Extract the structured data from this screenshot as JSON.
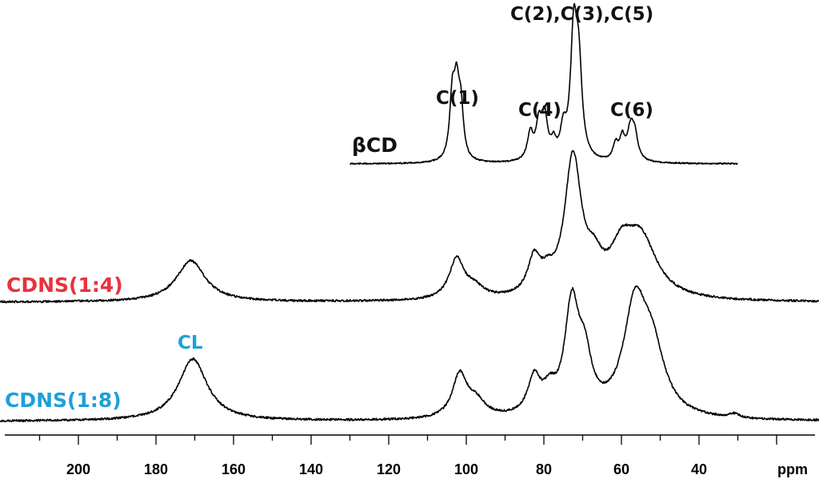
{
  "chart_data": {
    "type": "line",
    "title": "",
    "xlabel": "ppm",
    "ylabel": "",
    "x_reversed": true,
    "xlim": [
      221,
      6
    ],
    "x_ticks": [
      "200",
      "180",
      "160",
      "140",
      "120",
      "100",
      "80",
      "60",
      "40"
    ],
    "grid": false,
    "colors": {
      "trace": "#000000",
      "cdns14_label": "#e8323c",
      "cdns18_label": "#1ea0d8",
      "cl_label": "#1ea0d8",
      "bcd_label": "#111111"
    },
    "series": [
      {
        "name": "βCD",
        "x_range": [
          130,
          30
        ],
        "peaks": [
          {
            "ppm": 103.6,
            "height": 0.5,
            "width": 0.8
          },
          {
            "ppm": 102.5,
            "height": 0.52,
            "width": 0.8
          },
          {
            "ppm": 101.4,
            "height": 0.4,
            "width": 0.8
          },
          {
            "ppm": 83.5,
            "height": 0.22,
            "width": 0.9
          },
          {
            "ppm": 81.3,
            "height": 0.28,
            "width": 0.9
          },
          {
            "ppm": 79.8,
            "height": 0.34,
            "width": 0.9
          },
          {
            "ppm": 77.5,
            "height": 0.12,
            "width": 0.8
          },
          {
            "ppm": 75.0,
            "height": 0.22,
            "width": 0.9
          },
          {
            "ppm": 72.3,
            "height": 1.0,
            "width": 1.0
          },
          {
            "ppm": 71.0,
            "height": 0.7,
            "width": 1.0
          },
          {
            "ppm": 61.5,
            "height": 0.13,
            "width": 0.8
          },
          {
            "ppm": 59.8,
            "height": 0.17,
            "width": 0.8
          },
          {
            "ppm": 57.6,
            "height": 0.27,
            "width": 1.1
          },
          {
            "ppm": 56.5,
            "height": 0.16,
            "width": 0.9
          }
        ]
      },
      {
        "name": "CDNS(1:4)",
        "x_range": [
          221,
          6
        ],
        "peaks": [
          {
            "ppm": 171.0,
            "height": 0.3,
            "width": 4.5
          },
          {
            "ppm": 102.5,
            "height": 0.29,
            "width": 2.3
          },
          {
            "ppm": 98.0,
            "height": 0.08,
            "width": 3.0
          },
          {
            "ppm": 82.5,
            "height": 0.26,
            "width": 2.0
          },
          {
            "ppm": 79.0,
            "height": 0.1,
            "width": 2.0
          },
          {
            "ppm": 72.5,
            "height": 1.0,
            "width": 2.6
          },
          {
            "ppm": 67.0,
            "height": 0.18,
            "width": 2.5
          },
          {
            "ppm": 60.0,
            "height": 0.27,
            "width": 3.5
          },
          {
            "ppm": 55.0,
            "height": 0.42,
            "width": 5.0
          }
        ]
      },
      {
        "name": "CDNS(1:8)",
        "x_range": [
          221,
          6
        ],
        "peaks": [
          {
            "ppm": 170.5,
            "height": 0.48,
            "width": 4.5
          },
          {
            "ppm": 101.7,
            "height": 0.33,
            "width": 2.3
          },
          {
            "ppm": 97.5,
            "height": 0.12,
            "width": 3.0
          },
          {
            "ppm": 82.5,
            "height": 0.28,
            "width": 2.0
          },
          {
            "ppm": 78.5,
            "height": 0.15,
            "width": 2.0
          },
          {
            "ppm": 72.8,
            "height": 0.82,
            "width": 2.2
          },
          {
            "ppm": 69.5,
            "height": 0.38,
            "width": 2.2
          },
          {
            "ppm": 56.5,
            "height": 0.82,
            "width": 3.6
          },
          {
            "ppm": 52.0,
            "height": 0.45,
            "width": 3.8
          },
          {
            "ppm": 31.0,
            "height": 0.03,
            "width": 1.5
          }
        ]
      }
    ],
    "annotations": [
      "C(2),C(3),C(5)",
      "C(1)",
      "C(4)",
      "C(6)",
      "CL"
    ]
  }
}
